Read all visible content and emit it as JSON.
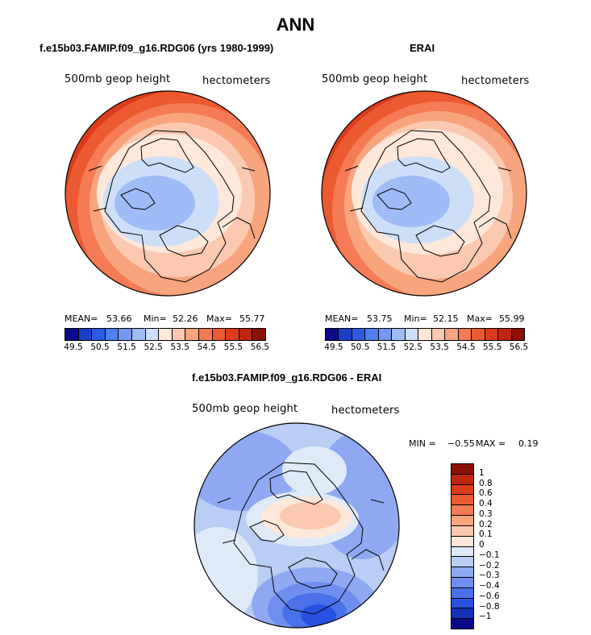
{
  "title": "ANN",
  "panels": [
    {
      "title": "f.e15b03.FAMIP.f09_g16.RDG06 (yrs 1980-1999)",
      "left_label": "500mb geop height",
      "right_label": "hectometers",
      "stats": {
        "mean_label": "MEAN=",
        "mean": "53.66",
        "min_label": "Min=",
        "min": "52.26",
        "max_label": "Max=",
        "max": "55.77"
      }
    },
    {
      "title": "ERAI",
      "left_label": "500mb geop height",
      "right_label": "hectometers",
      "stats": {
        "mean_label": "MEAN=",
        "mean": "53.75",
        "min_label": "Min=",
        "min": "52.15",
        "max_label": "Max=",
        "max": "55.99"
      }
    },
    {
      "title": "f.e15b03.FAMIP.f09_g16.RDG06 - ERAI",
      "left_label": "500mb geop height",
      "right_label": "hectometers",
      "minmax": {
        "min_label": "MIN =",
        "min": "−0.55",
        "max_label": "MAX =",
        "max": "0.19"
      }
    }
  ],
  "colorbar_h": {
    "colors": [
      "#0a0a8a",
      "#1c3fc8",
      "#2e5ae6",
      "#4f7ff0",
      "#7599f2",
      "#9ebcf5",
      "#cddff8",
      "#fde8da",
      "#fbc9b0",
      "#f8a47e",
      "#f47b55",
      "#ec5a32",
      "#dc3c1c",
      "#be2610",
      "#8c1006"
    ],
    "tick_labels": [
      "49.5",
      "50.5",
      "51.5",
      "52.5",
      "53.5",
      "54.5",
      "55.5",
      "56.5"
    ]
  },
  "colorbar_v": {
    "colors": [
      "#8c1006",
      "#be2610",
      "#dc3c1c",
      "#ec5a32",
      "#f47b55",
      "#f8a47e",
      "#fbc9b0",
      "#fde8da",
      "#dfeaf8",
      "#b9cdf5",
      "#8ea9f2",
      "#6f8ff0",
      "#4a70ea",
      "#2a50e0",
      "#1630b8",
      "#0a0a8a"
    ],
    "tick_labels": [
      "1",
      "0.8",
      "0.6",
      "0.4",
      "0.3",
      "0.2",
      "0.1",
      "0",
      "−0.1",
      "−0.2",
      "−0.3",
      "−0.4",
      "−0.6",
      "−0.8",
      "−1"
    ]
  }
}
